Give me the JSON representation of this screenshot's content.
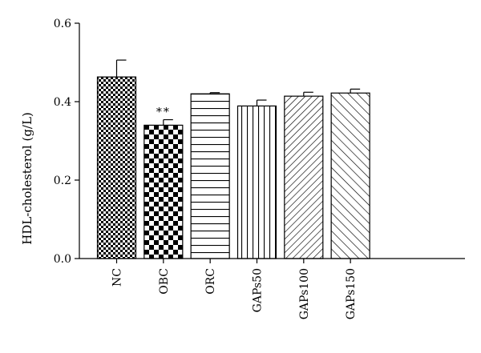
{
  "chart_data": {
    "type": "bar",
    "ylabel": "HDL-cholesterol (g/L)",
    "ylim": [
      0,
      0.6
    ],
    "yticks": [
      "0.0",
      "0.2",
      "0.4",
      "0.6"
    ],
    "categories": [
      "NC",
      "OBC",
      "ORC",
      "GAPs50",
      "GAPs100",
      "GAPs150"
    ],
    "values": [
      0.463,
      0.34,
      0.42,
      0.389,
      0.414,
      0.422
    ],
    "errors": [
      0.043,
      0.014,
      0.003,
      0.015,
      0.01,
      0.01
    ],
    "patterns": [
      "checker-fine",
      "checker-large",
      "horizontal",
      "vertical",
      "diagonal-right",
      "diagonal-left"
    ],
    "annotations": [
      {
        "category": "OBC",
        "text": "**"
      }
    ],
    "grid": false,
    "colors": {
      "stroke": "#000000",
      "fill": "#ffffff"
    }
  }
}
